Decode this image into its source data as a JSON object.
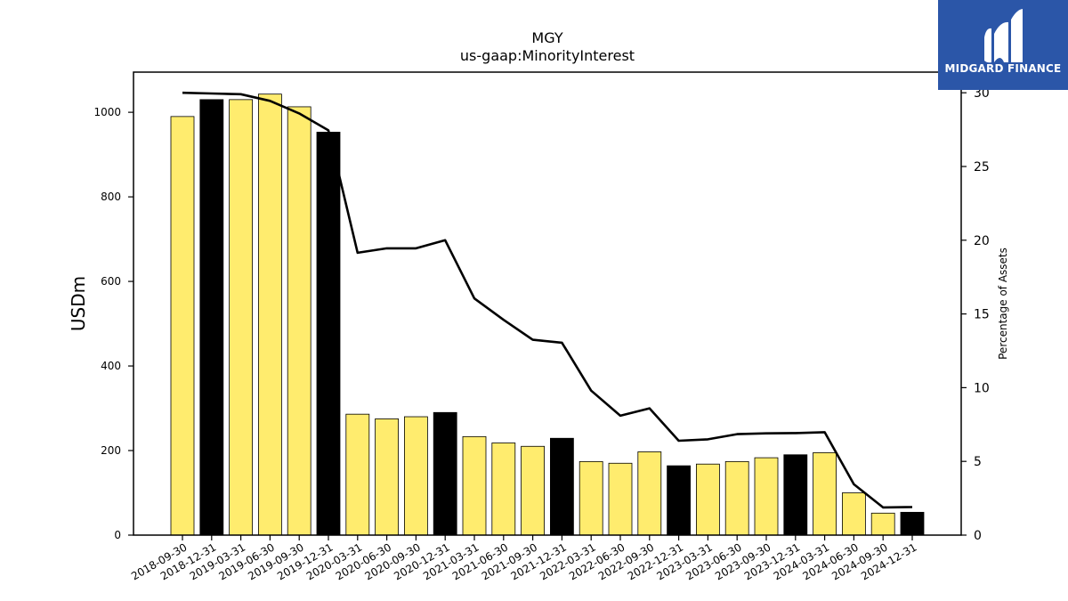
{
  "chart_data": {
    "type": "bar",
    "title": "MGY",
    "subtitle": "us-gaap:MinorityInterest",
    "ylabel": "USDm",
    "y2label": "Percentage of Assets",
    "ylim": [
      0,
      1095
    ],
    "y2lim": [
      0,
      31.4
    ],
    "yticks": [
      0,
      200,
      400,
      600,
      800,
      1000
    ],
    "y2ticks": [
      0,
      5,
      10,
      15,
      20,
      25,
      30
    ],
    "categories": [
      "2018-09-30",
      "2018-12-31",
      "2019-03-31",
      "2019-06-30",
      "2019-09-30",
      "2019-12-31",
      "2020-03-31",
      "2020-06-30",
      "2020-09-30",
      "2020-12-31",
      "2021-03-31",
      "2021-06-30",
      "2021-09-30",
      "2021-12-31",
      "2022-03-31",
      "2022-06-30",
      "2022-09-30",
      "2022-12-31",
      "2023-03-31",
      "2023-06-30",
      "2023-09-30",
      "2023-12-31",
      "2024-03-31",
      "2024-06-30",
      "2024-09-30",
      "2024-12-31"
    ],
    "series": [
      {
        "type": "bar",
        "values": [
          990,
          1030,
          1030,
          1043,
          1013,
          953,
          286,
          275,
          280,
          290,
          233,
          218,
          210,
          229,
          174,
          170,
          197,
          164,
          168,
          174,
          183,
          190,
          195,
          100,
          52,
          54
        ],
        "colors": [
          "#ffec6e",
          "#000000",
          "#ffec6e",
          "#ffec6e",
          "#ffec6e",
          "#000000",
          "#ffec6e",
          "#ffec6e",
          "#ffec6e",
          "#000000",
          "#ffec6e",
          "#ffec6e",
          "#ffec6e",
          "#000000",
          "#ffec6e",
          "#ffec6e",
          "#ffec6e",
          "#000000",
          "#ffec6e",
          "#ffec6e",
          "#ffec6e",
          "#000000",
          "#ffec6e",
          "#ffec6e",
          "#ffec6e",
          "#000000"
        ]
      },
      {
        "type": "line",
        "axis": "right",
        "values": [
          30.0,
          29.95,
          29.9,
          29.45,
          28.6,
          27.45,
          19.15,
          19.45,
          19.45,
          20.0,
          16.05,
          14.6,
          13.25,
          13.05,
          9.8,
          8.1,
          8.6,
          6.4,
          6.5,
          6.85,
          6.9,
          6.92,
          6.98,
          3.45,
          1.88,
          1.9
        ],
        "color": "#000000"
      }
    ],
    "grid": false,
    "legend": "none"
  },
  "logo": {
    "text": "MIDGARD FINANCE",
    "background": "#2b56a8",
    "icon": "midgard-logo-icon"
  }
}
